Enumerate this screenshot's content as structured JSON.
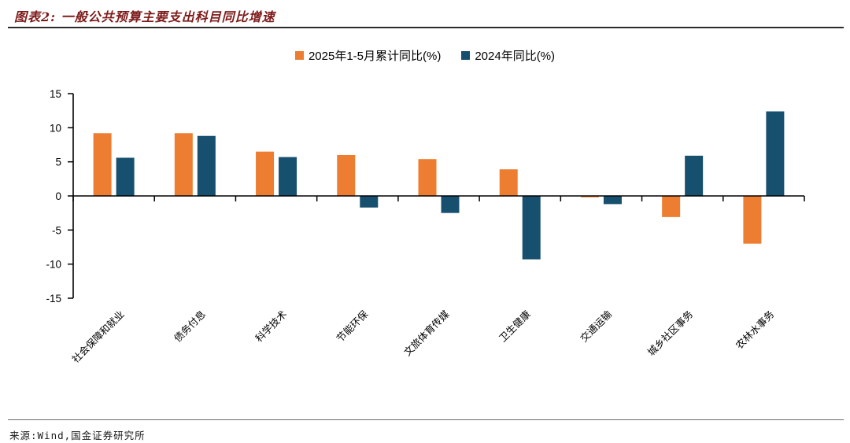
{
  "header": {
    "title": "图表2: 一般公共预算主要支出科目同比增速"
  },
  "footer": {
    "source": "来源:Wind,国金证券研究所"
  },
  "chart_data": {
    "type": "bar",
    "title": "一般公共预算主要支出科目同比增速",
    "categories": [
      "社会保障和就业",
      "债务付息",
      "科学技术",
      "节能环保",
      "文旅体育传媒",
      "卫生健康",
      "交通运输",
      "城乡社区事务",
      "农林水事务"
    ],
    "series": [
      {
        "name": "2025年1-5月累计同比(%)",
        "color": "#ED7D31",
        "values": [
          9.2,
          9.2,
          6.5,
          6.0,
          5.4,
          3.9,
          -0.2,
          -3.1,
          -7.0
        ]
      },
      {
        "name": "2024年同比(%)",
        "color": "#16506E",
        "values": [
          5.6,
          8.8,
          5.7,
          -1.7,
          -2.5,
          -9.3,
          -1.2,
          5.9,
          12.4
        ]
      }
    ],
    "xlabel": "",
    "ylabel": "",
    "ylim": [
      -15,
      15
    ],
    "yticks": [
      -15,
      -10,
      -5,
      0,
      5,
      10,
      15
    ],
    "grid": false,
    "legend_position": "top",
    "title_color": "#7E1B1B",
    "axis_color": "#000000"
  }
}
